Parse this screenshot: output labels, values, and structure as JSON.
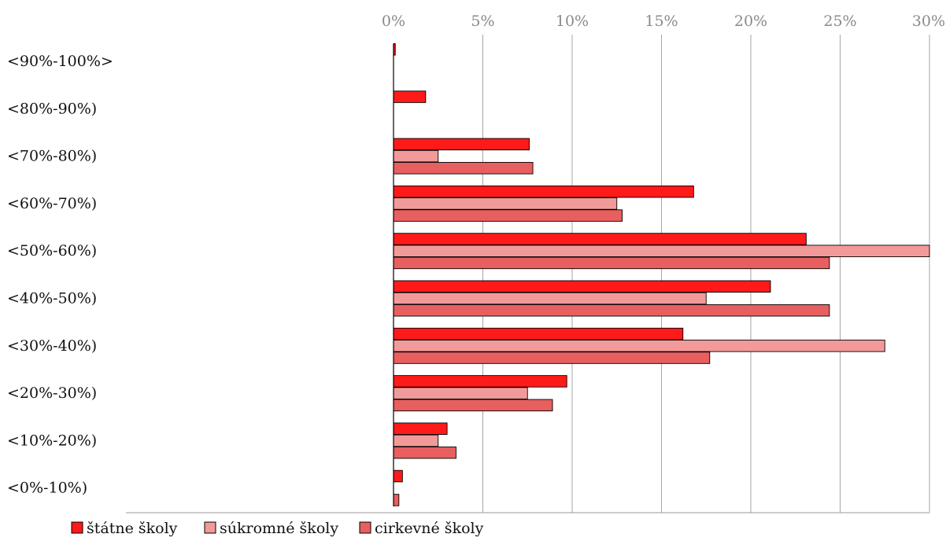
{
  "chart_data": {
    "type": "bar",
    "orientation": "horizontal",
    "title": "",
    "xlabel": "",
    "ylabel": "",
    "xlim": [
      0,
      30
    ],
    "x_ticks": [
      0,
      5,
      10,
      15,
      20,
      25,
      30
    ],
    "x_tick_labels": [
      "0%",
      "5%",
      "10%",
      "15%",
      "20%",
      "25%",
      "30%"
    ],
    "x_axis_position": "top",
    "grid": "vertical",
    "legend_position": "bottom-left",
    "categories": [
      "<90%-100%>",
      "<80%-90%)",
      "<70%-80%)",
      "<60%-70%)",
      "<50%-60%)",
      "<40%-50%)",
      "<30%-40%)",
      "<20%-30%)",
      "<10%-20%)",
      "<0%-10%)"
    ],
    "series": [
      {
        "name": "štátne školy",
        "color": "#ff1a1a",
        "values": [
          0.1,
          1.8,
          7.6,
          16.8,
          23.1,
          21.1,
          16.2,
          9.7,
          3.0,
          0.5
        ]
      },
      {
        "name": "súkromné školy",
        "color": "#f29a9a",
        "values": [
          0.0,
          0.0,
          2.5,
          12.5,
          30.0,
          17.5,
          27.5,
          7.5,
          2.5,
          0.0
        ]
      },
      {
        "name": "cirkevné školy",
        "color": "#e85f5f",
        "values": [
          0.0,
          0.0,
          7.8,
          12.8,
          24.4,
          24.4,
          17.7,
          8.9,
          3.5,
          0.3
        ]
      }
    ]
  }
}
